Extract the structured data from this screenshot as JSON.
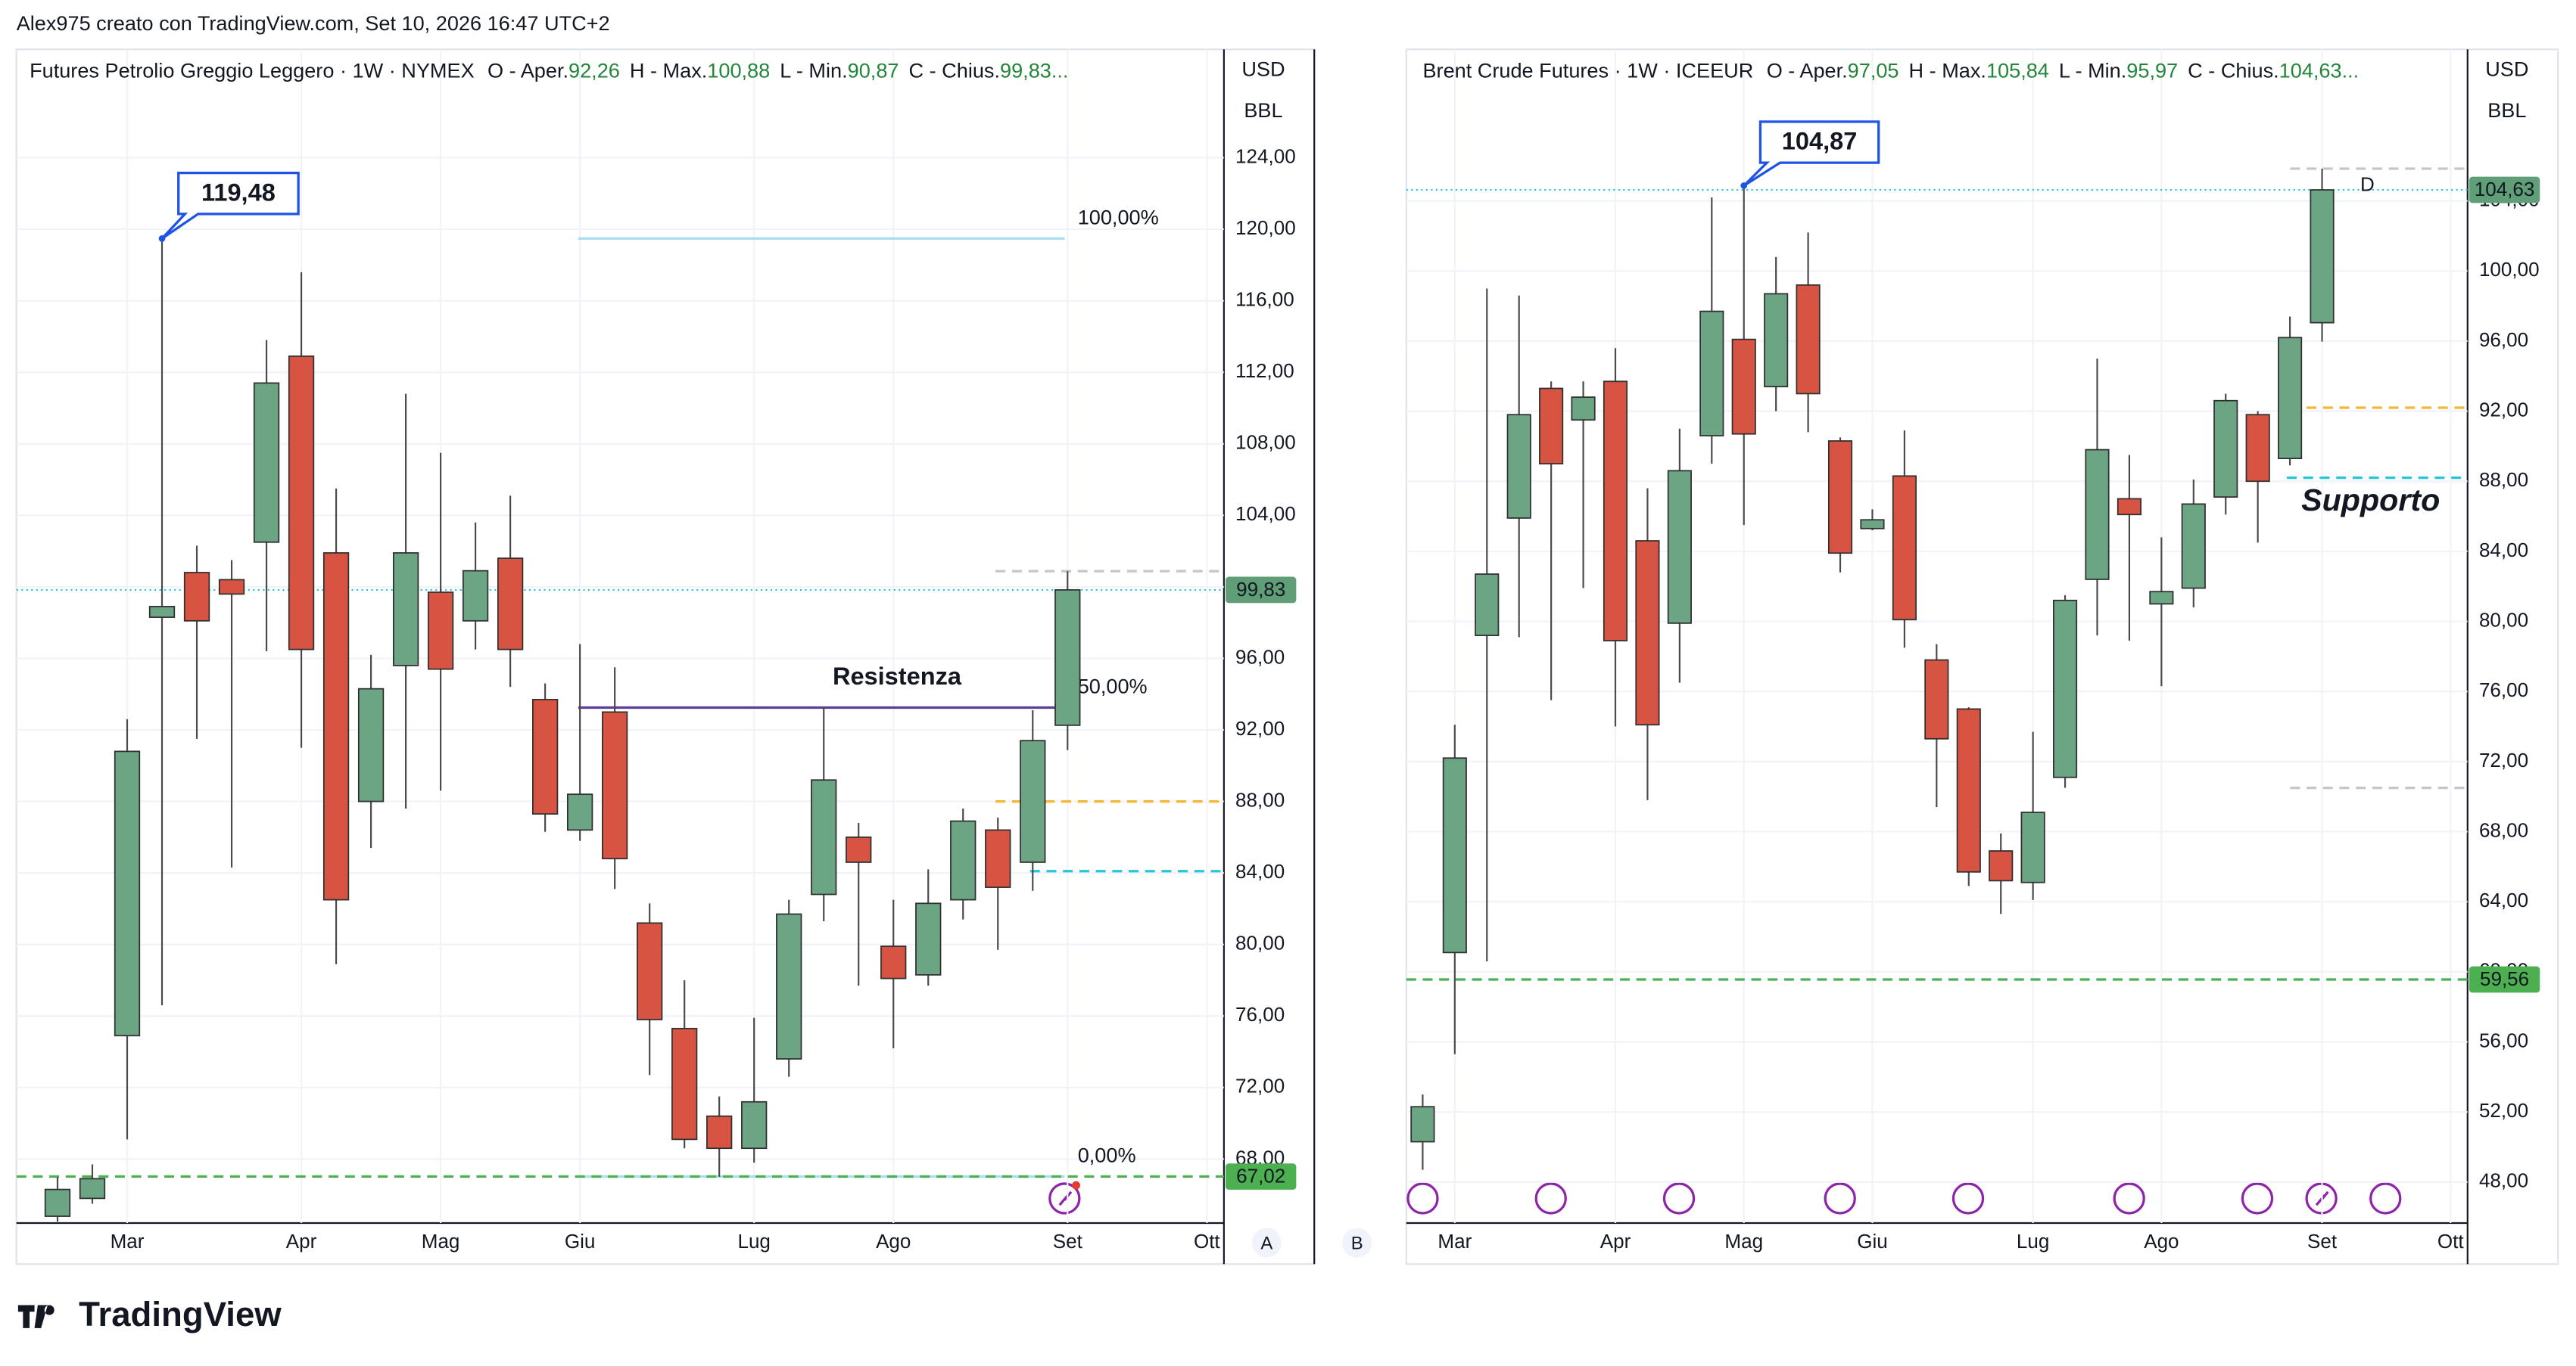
{
  "caption": "Alex975 creato con TradingView.com, Set 10, 2026 16:47 UTC+2",
  "brand": "TradingView",
  "panes": [
    "A",
    "B"
  ],
  "chart_data": [
    {
      "type": "candlestick",
      "title": "Futures Petrolio Greggio Leggero · 1W · NYMEX",
      "legend_items": [
        {
          "key": "O - Aper.",
          "text": "92,26"
        },
        {
          "key": "H - Max.",
          "text": "100,88"
        },
        {
          "key": "L - Min.",
          "text": "90,87"
        },
        {
          "key": "C - Chius.",
          "text": "99,83..."
        }
      ],
      "currency": "USD",
      "unit": "BBL",
      "up_color": "#6ba583",
      "down_color": "#d75442",
      "open": [
        64.8,
        65.8,
        74.9,
        98.3,
        100.8,
        100.4,
        102.5,
        112.9,
        101.9,
        88.0,
        95.6,
        99.7,
        98.1,
        101.6,
        93.7,
        86.4,
        93.0,
        81.2,
        75.3,
        70.4,
        68.6,
        73.6,
        82.8,
        86.0,
        79.9,
        78.3,
        82.5,
        86.4,
        84.6,
        92.26
      ],
      "high": [
        67.0,
        67.7,
        92.6,
        119.48,
        102.3,
        101.5,
        113.8,
        117.6,
        105.5,
        96.2,
        110.8,
        107.5,
        103.6,
        105.1,
        94.6,
        96.8,
        95.5,
        82.3,
        78.0,
        71.5,
        75.9,
        82.5,
        93.3,
        86.8,
        82.5,
        84.2,
        87.6,
        87.1,
        93.1,
        100.88
      ],
      "low": [
        64.5,
        65.5,
        69.1,
        76.6,
        91.5,
        84.3,
        96.4,
        91.0,
        78.9,
        85.4,
        87.6,
        88.6,
        96.5,
        94.4,
        86.3,
        85.8,
        83.1,
        72.7,
        68.6,
        67.0,
        67.8,
        72.6,
        81.3,
        77.7,
        74.2,
        77.7,
        81.4,
        79.7,
        83.0,
        90.87
      ],
      "close": [
        66.3,
        66.9,
        90.8,
        98.9,
        98.1,
        99.6,
        111.4,
        96.5,
        82.5,
        94.3,
        101.9,
        95.4,
        100.9,
        96.5,
        87.3,
        88.4,
        84.8,
        75.8,
        69.1,
        68.6,
        71.2,
        81.7,
        89.2,
        84.6,
        78.1,
        82.3,
        86.9,
        83.2,
        91.4,
        99.83
      ],
      "xlim": [
        -1.18,
        33.49
      ],
      "xticks": [
        {
          "value": 2,
          "label": "Mar"
        },
        {
          "value": 7,
          "label": "Apr"
        },
        {
          "value": 11,
          "label": "Mag"
        },
        {
          "value": 15,
          "label": "Giu"
        },
        {
          "value": 20,
          "label": "Lug"
        },
        {
          "value": 24,
          "label": "Ago"
        },
        {
          "value": 29,
          "label": "Set"
        },
        {
          "value": 33,
          "label": "Ott"
        }
      ],
      "ylim": [
        64.42,
        130.06
      ],
      "yticks": [
        {
          "value": 68,
          "label": "68,00"
        },
        {
          "value": 72,
          "label": "72,00"
        },
        {
          "value": 76,
          "label": "76,00"
        },
        {
          "value": 80,
          "label": "80,00"
        },
        {
          "value": 84,
          "label": "84,00"
        },
        {
          "value": 88,
          "label": "88,00"
        },
        {
          "value": 92,
          "label": "92,00"
        },
        {
          "value": 96,
          "label": "96,00"
        },
        {
          "value": 100,
          "label": "100,00"
        },
        {
          "value": 104,
          "label": "104,00"
        },
        {
          "value": 108,
          "label": "108,00"
        },
        {
          "value": 112,
          "label": "112,00"
        },
        {
          "value": 116,
          "label": "116,00"
        },
        {
          "value": 120,
          "label": "120,00"
        },
        {
          "value": 124,
          "label": "124,00"
        }
      ],
      "grid": true,
      "levels": [
        {
          "value": 100.88,
          "color": "#c3c6ce",
          "style": "dashed"
        },
        {
          "value": 99.83,
          "label": "99,83",
          "label_color": "#5f9e76",
          "color": "#26c6da",
          "style": "dotted"
        },
        {
          "value": 88.0,
          "color": "#f5b731",
          "style": "dashed"
        },
        {
          "value": 84.1,
          "color": "#26c6da",
          "style": "dashed"
        },
        {
          "value": 67.02,
          "label": "67,02",
          "label_color": "#4caf50",
          "color": "#4caf50",
          "style": "dashed"
        }
      ],
      "fibonacci": [
        {
          "value": 119.48,
          "label": "100,00%",
          "color": "#a9def0"
        },
        {
          "value": 93.25,
          "label": "50,00%",
          "color": "#5b3c98"
        },
        {
          "value": 67.02,
          "label": "0,00%",
          "color": "#a9def0"
        }
      ],
      "callout": {
        "index": 3,
        "value": 119.48,
        "label": "119,48"
      },
      "notes": [
        {
          "text": "Resistenza",
          "color": "#a23fb2"
        }
      ]
    },
    {
      "type": "candlestick",
      "title": "Brent Crude Futures · 1W · ICEEUR",
      "legend_items": [
        {
          "key": "O - Aper.",
          "text": "97,05"
        },
        {
          "key": "H - Max.",
          "text": "105,84"
        },
        {
          "key": "L - Min.",
          "text": "95,97"
        },
        {
          "key": "C - Chius.",
          "text": "104,63..."
        }
      ],
      "currency": "USD",
      "unit": "BBL",
      "up_color": "#6ba583",
      "down_color": "#d75442",
      "open": [
        50.3,
        61.1,
        79.2,
        85.9,
        93.3,
        91.5,
        93.7,
        84.6,
        79.9,
        90.6,
        96.1,
        93.4,
        99.2,
        90.3,
        85.3,
        88.3,
        77.8,
        75.0,
        66.9,
        65.1,
        71.1,
        82.4,
        87.0,
        81.0,
        81.9,
        87.1,
        91.8,
        89.3,
        97.05
      ],
      "high": [
        53.0,
        74.1,
        99.0,
        98.6,
        93.7,
        93.7,
        95.6,
        87.6,
        91.0,
        104.2,
        104.87,
        100.8,
        102.2,
        90.5,
        86.4,
        90.9,
        78.7,
        75.1,
        67.9,
        73.7,
        81.5,
        95.0,
        89.5,
        84.8,
        88.1,
        93.0,
        92.0,
        97.4,
        105.84
      ],
      "low": [
        48.7,
        55.3,
        60.6,
        79.1,
        75.5,
        81.9,
        74.0,
        69.8,
        76.5,
        89.0,
        85.5,
        92.0,
        90.8,
        82.8,
        85.2,
        78.5,
        69.4,
        64.9,
        63.3,
        64.1,
        70.5,
        79.2,
        78.9,
        76.3,
        80.8,
        86.1,
        84.5,
        88.9,
        95.97
      ],
      "close": [
        52.3,
        72.2,
        82.7,
        91.8,
        89.0,
        92.8,
        78.9,
        74.1,
        88.6,
        97.7,
        90.7,
        98.7,
        93.0,
        83.9,
        85.8,
        80.1,
        73.3,
        65.7,
        65.2,
        69.1,
        81.2,
        89.8,
        86.1,
        81.7,
        86.7,
        92.6,
        88.0,
        96.2,
        104.63
      ],
      "xlim": [
        -0.51,
        32.53
      ],
      "xticks": [
        {
          "value": 1,
          "label": "Mar"
        },
        {
          "value": 6,
          "label": "Apr"
        },
        {
          "value": 10,
          "label": "Mag"
        },
        {
          "value": 14,
          "label": "Giu"
        },
        {
          "value": 19,
          "label": "Lug"
        },
        {
          "value": 23,
          "label": "Ago"
        },
        {
          "value": 28,
          "label": "Set"
        },
        {
          "value": 32,
          "label": "Ott"
        }
      ],
      "ylim": [
        45.66,
        112.65
      ],
      "yticks": [
        {
          "value": 48,
          "label": "48,00"
        },
        {
          "value": 52,
          "label": "52,00"
        },
        {
          "value": 56,
          "label": "56,00"
        },
        {
          "value": 60,
          "label": "60,00"
        },
        {
          "value": 64,
          "label": "64,00"
        },
        {
          "value": 68,
          "label": "68,00"
        },
        {
          "value": 72,
          "label": "72,00"
        },
        {
          "value": 76,
          "label": "76,00"
        },
        {
          "value": 80,
          "label": "80,00"
        },
        {
          "value": 84,
          "label": "84,00"
        },
        {
          "value": 88,
          "label": "88,00"
        },
        {
          "value": 92,
          "label": "92,00"
        },
        {
          "value": 96,
          "label": "96,00"
        },
        {
          "value": 100,
          "label": "100,00"
        },
        {
          "value": 104,
          "label": "104,00"
        }
      ],
      "grid": true,
      "levels": [
        {
          "value": 105.84,
          "color": "#c3c6ce",
          "style": "dashed"
        },
        {
          "value": 104.63,
          "label": "104,63",
          "label_color": "#5f9e76",
          "color": "#26c6da",
          "style": "dotted"
        },
        {
          "value": 92.2,
          "color": "#f5b731",
          "style": "dashed"
        },
        {
          "value": 88.2,
          "color": "#26c6da",
          "style": "dashed"
        },
        {
          "value": 70.5,
          "color": "#c3c6ce",
          "style": "dashed"
        },
        {
          "value": 59.56,
          "label": "59,56",
          "label_color": "#4caf50",
          "color": "#4caf50",
          "style": "dashed"
        }
      ],
      "callout": {
        "index": 10,
        "value": 104.87,
        "label": "104,87"
      },
      "notes": [
        {
          "text": "Supporto",
          "color": "#26c6da"
        },
        {
          "text": "D",
          "color": "#f5a623"
        }
      ]
    }
  ]
}
